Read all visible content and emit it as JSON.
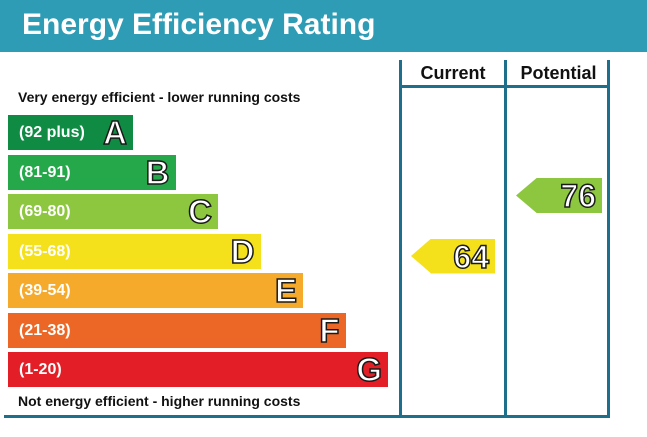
{
  "title": "Energy Efficiency Rating",
  "columns": {
    "current": "Current",
    "potential": "Potential"
  },
  "top_caption": "Very energy efficient - lower running costs",
  "bottom_caption": "Not energy efficient - higher running costs",
  "chart_data": {
    "type": "bar",
    "bands": [
      {
        "range": "(92 plus)",
        "letter": "A",
        "color": "#0f8b43"
      },
      {
        "range": "(81-91)",
        "letter": "B",
        "color": "#25a84a"
      },
      {
        "range": "(69-80)",
        "letter": "C",
        "color": "#8dc63f"
      },
      {
        "range": "(55-68)",
        "letter": "D",
        "color": "#f4e11c"
      },
      {
        "range": "(39-54)",
        "letter": "E",
        "color": "#f5aa2c"
      },
      {
        "range": "(21-38)",
        "letter": "F",
        "color": "#ec6725"
      },
      {
        "range": "(1-20)",
        "letter": "G",
        "color": "#e41e26"
      }
    ],
    "current": {
      "value": "64",
      "band": "D"
    },
    "potential": {
      "value": "76",
      "band": "C"
    }
  }
}
